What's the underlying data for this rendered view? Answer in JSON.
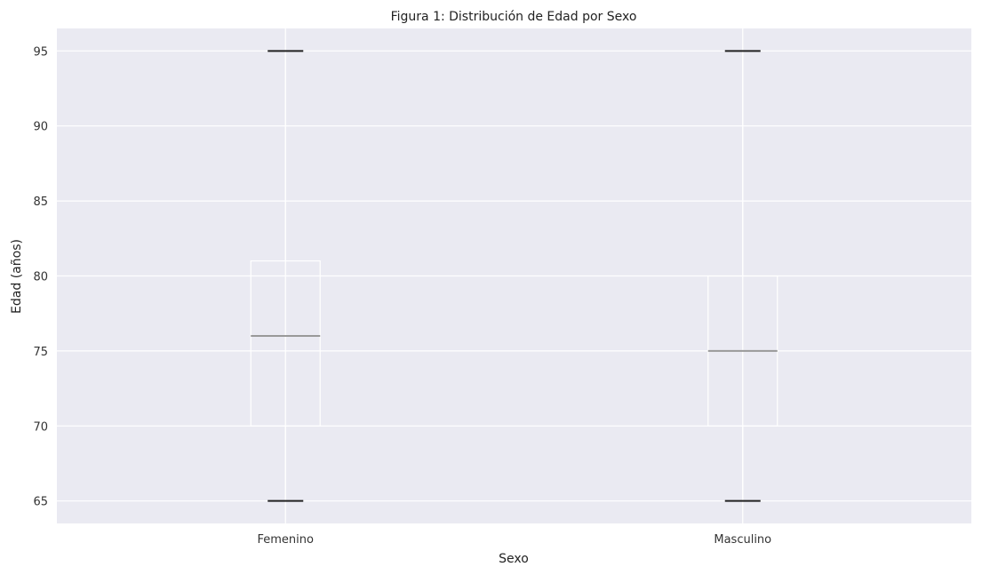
{
  "chart_data": {
    "type": "box",
    "title": "Figura 1: Distribución de Edad por Sexo",
    "xlabel": "Sexo",
    "ylabel": "Edad (años)",
    "categories": [
      "Femenino",
      "Masculino"
    ],
    "boxes": [
      {
        "category": "Femenino",
        "whisker_low": 65,
        "q1": 70,
        "median": 76,
        "q3": 81,
        "whisker_high": 95
      },
      {
        "category": "Masculino",
        "whisker_low": 65,
        "q1": 70,
        "median": 75,
        "q3": 80,
        "whisker_high": 95
      }
    ],
    "yticks": [
      65,
      70,
      75,
      80,
      85,
      90,
      95
    ],
    "ylim": [
      63.5,
      96.5
    ],
    "grid": true,
    "colors": {
      "plot_background": "#eaeaf2",
      "grid": "#ffffff",
      "box": "#ffffff",
      "whisker": "#ffffff",
      "median": "#999999",
      "cap": "#222222"
    }
  }
}
